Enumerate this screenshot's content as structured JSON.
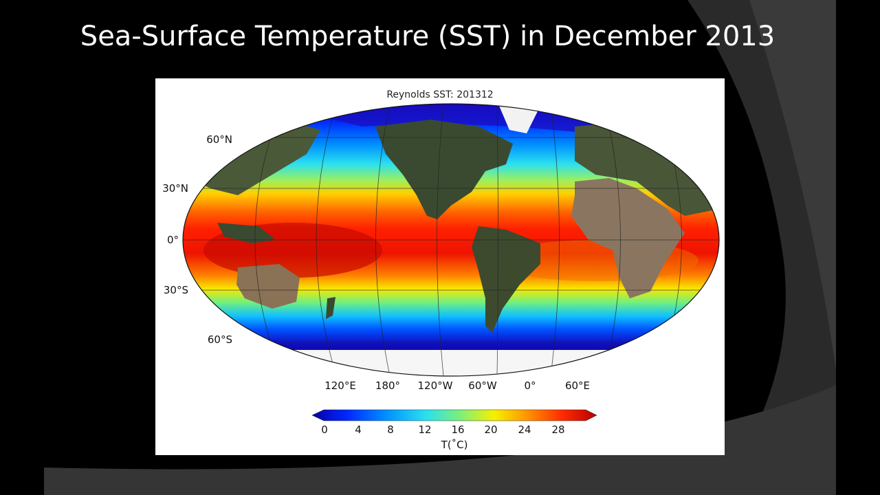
{
  "slide": {
    "title": "Sea-Surface Temperature (SST) in December 2013"
  },
  "map": {
    "title": "Reynolds SST: 201312",
    "projection": "Robinson",
    "lat_labels": [
      "60°N",
      "30°N",
      "0°",
      "30°S",
      "60°S"
    ],
    "lon_labels": [
      "120°E",
      "180°",
      "120°W",
      "60°W",
      "0°",
      "60°E"
    ]
  },
  "colorbar": {
    "ticks": [
      "0",
      "4",
      "8",
      "12",
      "16",
      "20",
      "24",
      "28"
    ],
    "label": "T(˚C)",
    "range": [
      0,
      31
    ],
    "colors": [
      "#0a00a8",
      "#0026ff",
      "#0090ff",
      "#2ae0f0",
      "#7cf07a",
      "#f8f000",
      "#ff9000",
      "#ff2a00",
      "#b80000"
    ]
  }
}
